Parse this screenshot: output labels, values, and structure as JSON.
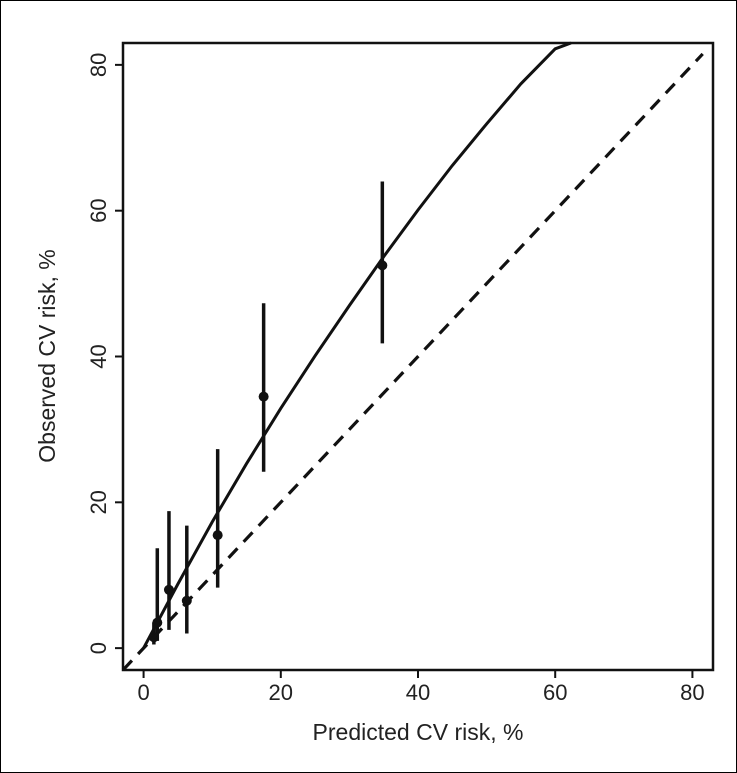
{
  "chart_data": {
    "type": "scatter",
    "title": "",
    "xlabel": "Predicted CV risk, %",
    "ylabel": "Observed CV risk, %",
    "xlim": [
      -3,
      83
    ],
    "ylim": [
      -3,
      83
    ],
    "xticks": [
      0,
      20,
      40,
      60,
      80
    ],
    "yticks": [
      0,
      20,
      40,
      60,
      80
    ],
    "grid": false,
    "series": [
      {
        "type": "errorbar",
        "points": [
          {
            "x": 1.5,
            "y": 1.5,
            "ylow": 0.5,
            "yhigh": 3.5
          },
          {
            "x": 2.0,
            "y": 3.5,
            "ylow": 1.0,
            "yhigh": 13.7
          },
          {
            "x": 3.7,
            "y": 8.0,
            "ylow": 2.5,
            "yhigh": 18.8
          },
          {
            "x": 6.3,
            "y": 6.5,
            "ylow": 2.0,
            "yhigh": 16.8
          },
          {
            "x": 10.8,
            "y": 15.5,
            "ylow": 8.3,
            "yhigh": 27.3
          },
          {
            "x": 17.5,
            "y": 34.5,
            "ylow": 24.2,
            "yhigh": 47.3
          },
          {
            "x": 34.8,
            "y": 52.5,
            "ylow": 41.8,
            "yhigh": 64.0
          }
        ]
      },
      {
        "type": "curve",
        "style": "solid",
        "x": [
          0,
          5,
          10,
          15,
          20,
          25,
          30,
          35,
          40,
          45,
          50,
          55,
          60,
          62.3
        ],
        "y": [
          0,
          8.8,
          17.3,
          25.3,
          32.9,
          40.1,
          47.0,
          53.7,
          60.1,
          66.2,
          71.9,
          77.4,
          82.2,
          83.0
        ]
      },
      {
        "type": "reference-line",
        "style": "dashed",
        "x": [
          -3,
          81.5
        ],
        "y": [
          -3,
          81.5
        ]
      }
    ]
  }
}
